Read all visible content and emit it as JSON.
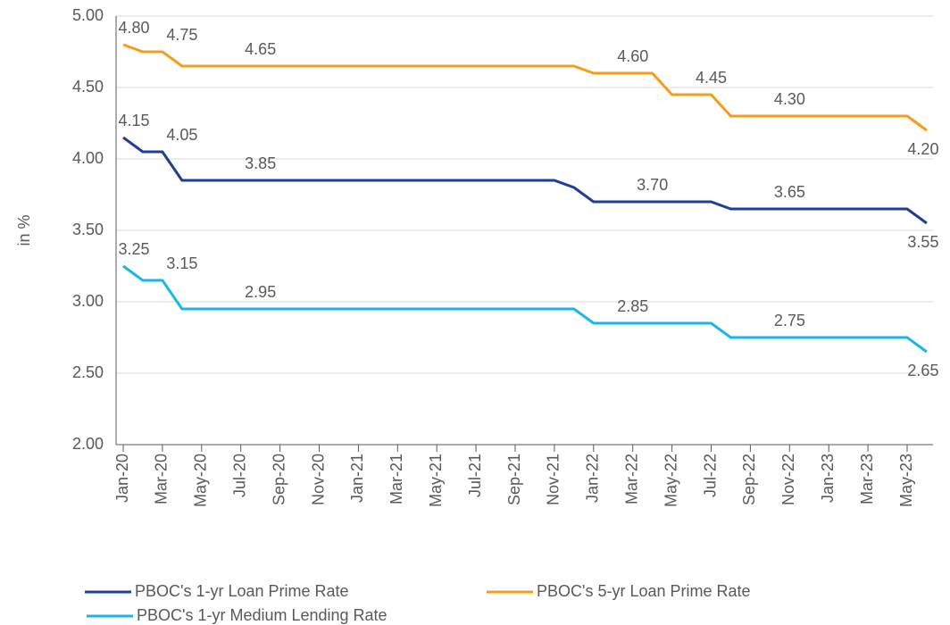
{
  "chart_data": {
    "type": "line",
    "y_label": "in %",
    "categories": [
      "Jan-20",
      null,
      "Mar-20",
      null,
      "May-20",
      null,
      "Jul-20",
      null,
      "Sep-20",
      null,
      "Nov-20",
      null,
      "Jan-21",
      null,
      "Mar-21",
      null,
      "May-21",
      null,
      "Jul-21",
      null,
      "Sep-21",
      null,
      "Nov-21",
      null,
      "Jan-22",
      null,
      "Mar-22",
      null,
      "May-22",
      null,
      "Jul-22",
      null,
      "Sep-22",
      null,
      "Nov-22",
      null,
      "Jan-23",
      null,
      "Mar-23",
      null,
      "May-23",
      null
    ],
    "series": [
      {
        "name": "PBOC's 1-yr Loan Prime Rate",
        "color": "#1f3e96",
        "values": [
          4.15,
          4.05,
          4.05,
          3.85,
          3.85,
          3.85,
          3.85,
          3.85,
          3.85,
          3.85,
          3.85,
          3.85,
          3.85,
          3.85,
          3.85,
          3.85,
          3.85,
          3.85,
          3.85,
          3.85,
          3.85,
          3.85,
          3.85,
          3.8,
          3.7,
          3.7,
          3.7,
          3.7,
          3.7,
          3.7,
          3.7,
          3.65,
          3.65,
          3.65,
          3.65,
          3.65,
          3.65,
          3.65,
          3.65,
          3.65,
          3.65,
          3.55
        ],
        "value_labels": [
          "4.15",
          null,
          "4.05",
          null,
          null,
          null,
          "3.85",
          null,
          null,
          null,
          null,
          null,
          null,
          null,
          null,
          null,
          null,
          null,
          null,
          null,
          null,
          null,
          null,
          null,
          null,
          null,
          "3.70",
          null,
          null,
          null,
          null,
          null,
          null,
          "3.65",
          null,
          null,
          null,
          null,
          null,
          null,
          null,
          "3.55"
        ]
      },
      {
        "name": "PBOC's 5-yr Loan Prime Rate",
        "color": "#f59c1a",
        "values": [
          4.8,
          4.75,
          4.75,
          4.65,
          4.65,
          4.65,
          4.65,
          4.65,
          4.65,
          4.65,
          4.65,
          4.65,
          4.65,
          4.65,
          4.65,
          4.65,
          4.65,
          4.65,
          4.65,
          4.65,
          4.65,
          4.65,
          4.65,
          4.65,
          4.6,
          4.6,
          4.6,
          4.6,
          4.45,
          4.45,
          4.45,
          4.3,
          4.3,
          4.3,
          4.3,
          4.3,
          4.3,
          4.3,
          4.3,
          4.3,
          4.3,
          4.2
        ],
        "value_labels": [
          "4.80",
          null,
          "4.75",
          null,
          null,
          null,
          "4.65",
          null,
          null,
          null,
          null,
          null,
          null,
          null,
          null,
          null,
          null,
          null,
          null,
          null,
          null,
          null,
          null,
          null,
          null,
          "4.60",
          null,
          null,
          null,
          "4.45",
          null,
          null,
          null,
          "4.30",
          null,
          null,
          null,
          null,
          null,
          null,
          null,
          "4.20"
        ]
      },
      {
        "name": "PBOC's 1-yr Medium Lending Rate",
        "color": "#1ab7ea",
        "values": [
          3.25,
          3.15,
          3.15,
          2.95,
          2.95,
          2.95,
          2.95,
          2.95,
          2.95,
          2.95,
          2.95,
          2.95,
          2.95,
          2.95,
          2.95,
          2.95,
          2.95,
          2.95,
          2.95,
          2.95,
          2.95,
          2.95,
          2.95,
          2.95,
          2.85,
          2.85,
          2.85,
          2.85,
          2.85,
          2.85,
          2.85,
          2.75,
          2.75,
          2.75,
          2.75,
          2.75,
          2.75,
          2.75,
          2.75,
          2.75,
          2.75,
          2.65
        ],
        "value_labels": [
          "3.25",
          null,
          "3.15",
          null,
          null,
          null,
          "2.95",
          null,
          null,
          null,
          null,
          null,
          null,
          null,
          null,
          null,
          null,
          null,
          null,
          null,
          null,
          null,
          null,
          null,
          null,
          "2.85",
          null,
          null,
          null,
          null,
          null,
          null,
          null,
          "2.75",
          null,
          null,
          null,
          null,
          null,
          null,
          null,
          "2.65"
        ]
      }
    ],
    "ylim": [
      2,
      5
    ],
    "yticks": [
      {
        "value": 2,
        "label": "2.00"
      },
      {
        "value": 2.5,
        "label": "2.50"
      },
      {
        "value": 3,
        "label": "3.00"
      },
      {
        "value": 3.5,
        "label": "3.50"
      },
      {
        "value": 4,
        "label": "4.00"
      },
      {
        "value": 4.5,
        "label": "4.50"
      },
      {
        "value": 5,
        "label": "5.00"
      }
    ],
    "grid": true
  }
}
